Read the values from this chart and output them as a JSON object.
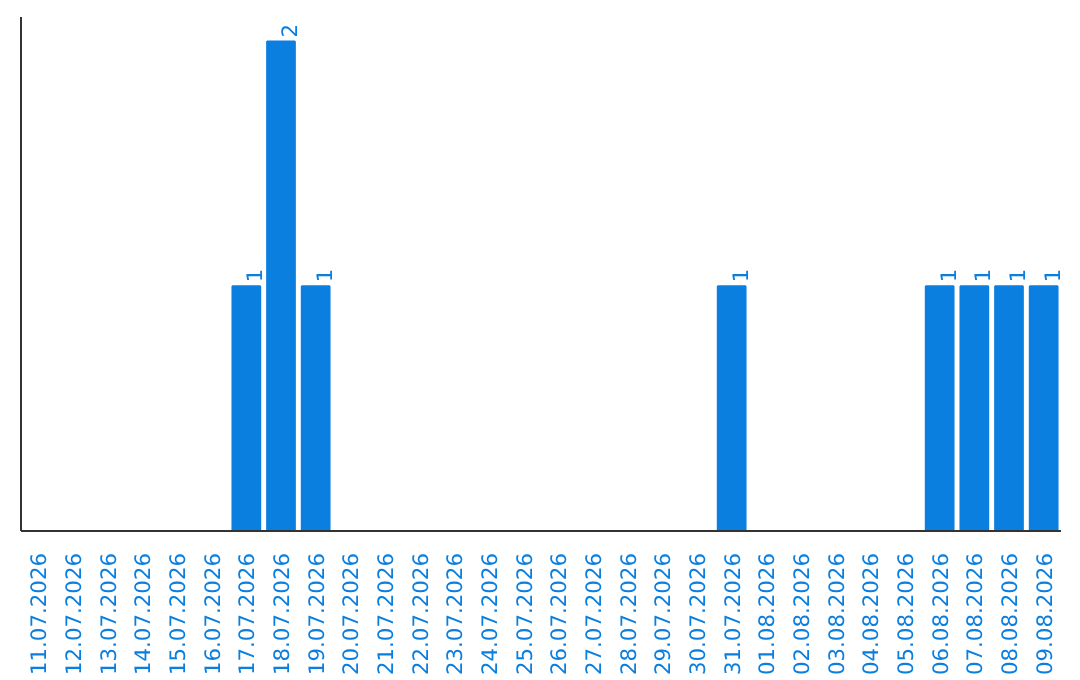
{
  "chart_data": {
    "type": "bar",
    "categories": [
      "11.07.2026",
      "12.07.2026",
      "13.07.2026",
      "14.07.2026",
      "15.07.2026",
      "16.07.2026",
      "17.07.2026",
      "18.07.2026",
      "19.07.2026",
      "20.07.2026",
      "21.07.2026",
      "22.07.2026",
      "23.07.2026",
      "24.07.2026",
      "25.07.2026",
      "26.07.2026",
      "27.07.2026",
      "28.07.2026",
      "29.07.2026",
      "30.07.2026",
      "31.07.2026",
      "01.08.2026",
      "02.08.2026",
      "03.08.2026",
      "04.08.2026",
      "05.08.2026",
      "06.08.2026",
      "07.08.2026",
      "08.08.2026",
      "09.08.2026"
    ],
    "values": [
      0,
      0,
      0,
      0,
      0,
      0,
      1,
      2,
      1,
      0,
      0,
      0,
      0,
      0,
      0,
      0,
      0,
      0,
      0,
      0,
      1,
      0,
      0,
      0,
      0,
      0,
      1,
      1,
      1,
      1
    ],
    "value_labels": [
      null,
      null,
      null,
      null,
      null,
      null,
      "1",
      "2",
      "1",
      null,
      null,
      null,
      null,
      null,
      null,
      null,
      null,
      null,
      null,
      null,
      "1",
      null,
      null,
      null,
      null,
      null,
      "1",
      "1",
      "1",
      "1"
    ],
    "color": "#0a7fe0",
    "grid": false,
    "tick_labels": "x"
  }
}
